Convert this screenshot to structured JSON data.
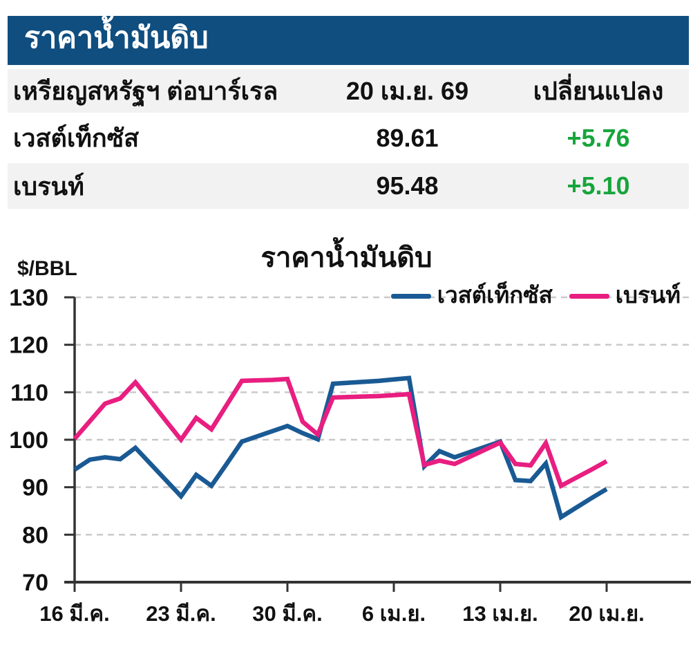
{
  "header": {
    "title": "ราคาน้ำมันดิบ"
  },
  "table": {
    "header": {
      "unit_label": "เหรียญสหรัฐฯ ต่อบาร์เรล",
      "date": "20 เม.ย. 69",
      "change_label": "เปลี่ยนแปลง"
    },
    "rows": [
      {
        "name": "เวสต์เท็กซัส",
        "price": "89.61",
        "change": "+5.76"
      },
      {
        "name": "เบรนท์",
        "price": "95.48",
        "change": "+5.10"
      }
    ],
    "positive_color": "#17a53c"
  },
  "colors": {
    "header_bg": "#104e80",
    "row_alt_bg": "#f2f2f2",
    "axis": "#333333",
    "grid": "#c9c9c9",
    "text": "#111111"
  },
  "chart_data": {
    "type": "line",
    "title": "ราคาน้ำมันดิบ",
    "ylabel": "$/BBL",
    "ylim": [
      70,
      130
    ],
    "y_ticks": [
      70,
      80,
      90,
      100,
      110,
      120,
      130
    ],
    "grid": "dashed horizontal gridlines at each y tick",
    "legend_position": "top-right",
    "x_note": "x = day index, 0 = 16 มี.ค. ... 35 = 20 เม.ย., one point per day",
    "x_tick_labels": [
      {
        "day": 0,
        "label": "16 มี.ค."
      },
      {
        "day": 7,
        "label": "23 มี.ค."
      },
      {
        "day": 14,
        "label": "30 มี.ค."
      },
      {
        "day": 21,
        "label": "6 เม.ย."
      },
      {
        "day": 28,
        "label": "13 เม.ย."
      },
      {
        "day": 35,
        "label": "20 เม.ย."
      }
    ],
    "series": [
      {
        "name": "เวสต์เท็กซัส",
        "color": "#1a5a94",
        "values": [
          93.7,
          95.8,
          96.3,
          95.9,
          98.3,
          94.9,
          91.5,
          88.1,
          92.6,
          90.3,
          94.9,
          99.6,
          100.7,
          101.8,
          102.9,
          101.4,
          100.1,
          111.8,
          112.0,
          112.2,
          112.4,
          112.7,
          113.0,
          94.4,
          97.6,
          96.3,
          97.4,
          98.5,
          99.6,
          91.5,
          91.3,
          95.0,
          83.7,
          85.7,
          87.7,
          89.61
        ]
      },
      {
        "name": "เบรนท์",
        "color": "#e81e80",
        "values": [
          100.2,
          103.9,
          107.6,
          108.7,
          112.1,
          108.1,
          104.0,
          100.0,
          104.6,
          102.2,
          107.3,
          112.4,
          112.5,
          112.6,
          112.8,
          103.8,
          101.1,
          108.9,
          109.0,
          109.1,
          109.2,
          109.4,
          109.6,
          94.7,
          95.6,
          94.9,
          96.4,
          97.9,
          99.4,
          94.9,
          94.6,
          99.3,
          90.3,
          92.0,
          93.7,
          95.48
        ]
      }
    ]
  }
}
